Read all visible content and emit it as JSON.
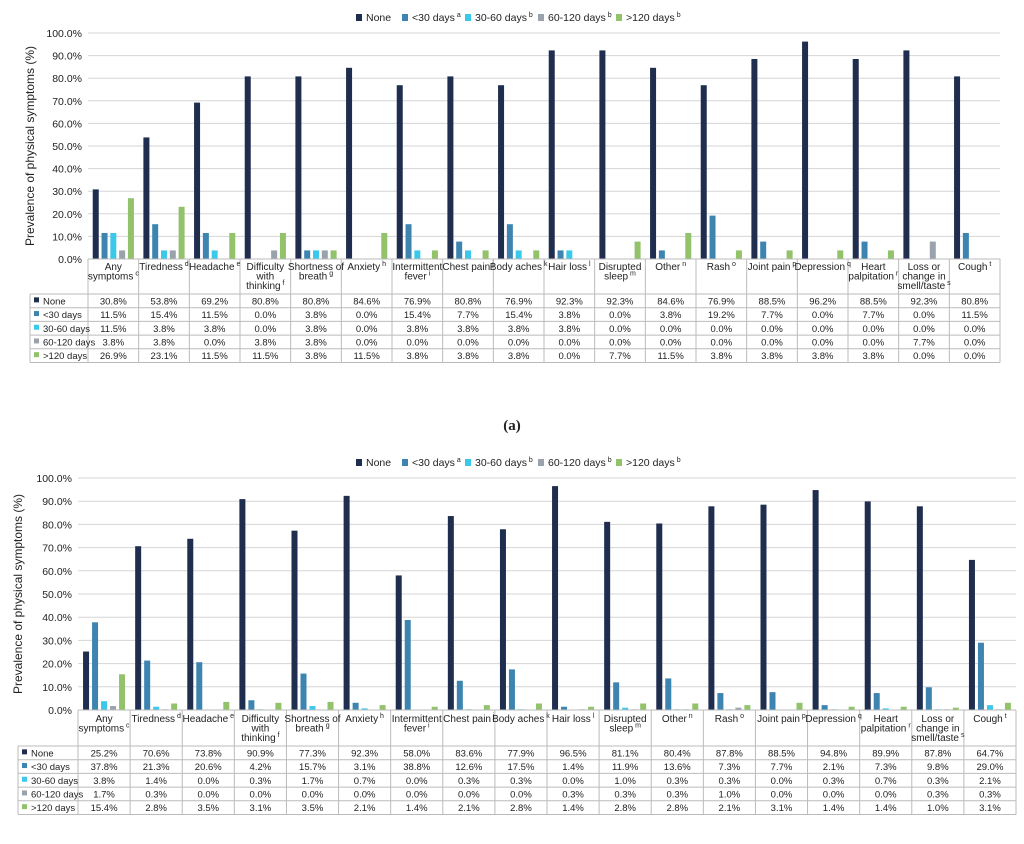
{
  "legend_labels": {
    "none": "None",
    "lt30": "<30 days",
    "d30_60": "30-60 days",
    "d60_120": "60-120 days",
    "gt120": ">120 days"
  },
  "legend_supers": {
    "lt30": "a",
    "d30_60": "b",
    "d60_120": "b",
    "gt120": "b"
  },
  "colors": {
    "none": "#1f2d4e",
    "lt30": "#3d84b0",
    "d30_60": "#3cc8ea",
    "d60_120": "#9aa3ab",
    "gt120": "#92c36a"
  },
  "caption_a": "(a)",
  "chart_data": [
    {
      "type": "bar",
      "panel": "a",
      "ylabel": "Prevalence of physical symptoms (%)",
      "ylim": [
        0,
        100
      ],
      "yticks": [
        "0.0%",
        "10.0%",
        "20.0%",
        "30.0%",
        "40.0%",
        "50.0%",
        "60.0%",
        "70.0%",
        "80.0%",
        "90.0%",
        "100.0%"
      ],
      "grid": true,
      "legend_position": "top",
      "categories": [
        {
          "lines": [
            "Any",
            "symptoms"
          ],
          "sup": "c"
        },
        {
          "lines": [
            "Tiredness"
          ],
          "sup": "d"
        },
        {
          "lines": [
            "Headache"
          ],
          "sup": "e"
        },
        {
          "lines": [
            "Difficulty",
            "with",
            "thinking"
          ],
          "sup": "f"
        },
        {
          "lines": [
            "Shortness of",
            "breath"
          ],
          "sup": "g"
        },
        {
          "lines": [
            "Anxiety"
          ],
          "sup": "h"
        },
        {
          "lines": [
            "Intermittent",
            "fever"
          ],
          "sup": "i"
        },
        {
          "lines": [
            "Chest pain"
          ],
          "sup": "j"
        },
        {
          "lines": [
            "Body aches"
          ],
          "sup": "k"
        },
        {
          "lines": [
            "Hair loss"
          ],
          "sup": "l"
        },
        {
          "lines": [
            "Disrupted",
            "sleep"
          ],
          "sup": "m"
        },
        {
          "lines": [
            "Other"
          ],
          "sup": "n"
        },
        {
          "lines": [
            "Rash"
          ],
          "sup": "o"
        },
        {
          "lines": [
            "Joint pain"
          ],
          "sup": "p"
        },
        {
          "lines": [
            "Depression"
          ],
          "sup": "q"
        },
        {
          "lines": [
            "Heart",
            "palpitation"
          ],
          "sup": "r"
        },
        {
          "lines": [
            "Loss or",
            "change in",
            "smell/taste"
          ],
          "sup": "s"
        },
        {
          "lines": [
            "Cough"
          ],
          "sup": "t"
        }
      ],
      "series": [
        {
          "key": "none",
          "name": "None",
          "values": [
            30.8,
            53.8,
            69.2,
            80.8,
            80.8,
            84.6,
            76.9,
            80.8,
            76.9,
            92.3,
            92.3,
            84.6,
            76.9,
            88.5,
            96.2,
            88.5,
            92.3,
            80.8
          ]
        },
        {
          "key": "lt30",
          "name": "<30 days",
          "values": [
            11.5,
            15.4,
            11.5,
            0.0,
            3.8,
            0.0,
            15.4,
            7.7,
            15.4,
            3.8,
            0.0,
            3.8,
            19.2,
            7.7,
            0.0,
            7.7,
            0.0,
            11.5
          ]
        },
        {
          "key": "d30_60",
          "name": "30-60 days",
          "values": [
            11.5,
            3.8,
            3.8,
            0.0,
            3.8,
            0.0,
            3.8,
            3.8,
            3.8,
            3.8,
            0.0,
            0.0,
            0.0,
            0.0,
            0.0,
            0.0,
            0.0,
            0.0
          ]
        },
        {
          "key": "d60_120",
          "name": "60-120 days",
          "values": [
            3.8,
            3.8,
            0.0,
            3.8,
            3.8,
            0.0,
            0.0,
            0.0,
            0.0,
            0.0,
            0.0,
            0.0,
            0.0,
            0.0,
            0.0,
            0.0,
            7.7,
            0.0
          ]
        },
        {
          "key": "gt120",
          "name": ">120 days",
          "values": [
            26.9,
            23.1,
            11.5,
            11.5,
            3.8,
            11.5,
            3.8,
            3.8,
            3.8,
            0.0,
            7.7,
            11.5,
            3.8,
            3.8,
            3.8,
            3.8,
            0.0,
            0.0
          ]
        }
      ],
      "table_labels": [
        "None",
        "<30 days",
        "30-60 days",
        "60-120 days",
        ">120 days"
      ],
      "table_values": [
        [
          "30.8%",
          "53.8%",
          "69.2%",
          "80.8%",
          "80.8%",
          "84.6%",
          "76.9%",
          "80.8%",
          "76.9%",
          "92.3%",
          "92.3%",
          "84.6%",
          "76.9%",
          "88.5%",
          "96.2%",
          "88.5%",
          "92.3%",
          "80.8%"
        ],
        [
          "11.5%",
          "15.4%",
          "11.5%",
          "0.0%",
          "3.8%",
          "0.0%",
          "15.4%",
          "7.7%",
          "15.4%",
          "3.8%",
          "0.0%",
          "3.8%",
          "19.2%",
          "7.7%",
          "0.0%",
          "7.7%",
          "0.0%",
          "11.5%"
        ],
        [
          "11.5%",
          "3.8%",
          "3.8%",
          "0.0%",
          "3.8%",
          "0.0%",
          "3.8%",
          "3.8%",
          "3.8%",
          "3.8%",
          "0.0%",
          "0.0%",
          "0.0%",
          "0.0%",
          "0.0%",
          "0.0%",
          "0.0%",
          "0.0%"
        ],
        [
          "3.8%",
          "3.8%",
          "0.0%",
          "3.8%",
          "3.8%",
          "0.0%",
          "0.0%",
          "0.0%",
          "0.0%",
          "0.0%",
          "0.0%",
          "0.0%",
          "0.0%",
          "0.0%",
          "0.0%",
          "0.0%",
          "7.7%",
          "0.0%"
        ],
        [
          "26.9%",
          "23.1%",
          "11.5%",
          "11.5%",
          "3.8%",
          "11.5%",
          "3.8%",
          "3.8%",
          "3.8%",
          "0.0%",
          "7.7%",
          "11.5%",
          "3.8%",
          "3.8%",
          "3.8%",
          "3.8%",
          "0.0%",
          "0.0%"
        ]
      ]
    },
    {
      "type": "bar",
      "panel": "b",
      "ylabel": "Prevalence of physical symptoms (%)",
      "ylim": [
        0,
        100
      ],
      "yticks": [
        "0.0%",
        "10.0%",
        "20.0%",
        "30.0%",
        "40.0%",
        "50.0%",
        "60.0%",
        "70.0%",
        "80.0%",
        "90.0%",
        "100.0%"
      ],
      "grid": true,
      "legend_position": "top",
      "categories": [
        {
          "lines": [
            "Any",
            "symptoms"
          ],
          "sup": "c"
        },
        {
          "lines": [
            "Tiredness"
          ],
          "sup": "d"
        },
        {
          "lines": [
            "Headache"
          ],
          "sup": "e"
        },
        {
          "lines": [
            "Difficulty",
            "with",
            "thinking"
          ],
          "sup": "f"
        },
        {
          "lines": [
            "Shortness of",
            "breath"
          ],
          "sup": "g"
        },
        {
          "lines": [
            "Anxiety"
          ],
          "sup": "h"
        },
        {
          "lines": [
            "Intermittent",
            "fever"
          ],
          "sup": "i"
        },
        {
          "lines": [
            "Chest pain"
          ],
          "sup": "j"
        },
        {
          "lines": [
            "Body aches"
          ],
          "sup": "k"
        },
        {
          "lines": [
            "Hair loss"
          ],
          "sup": "l"
        },
        {
          "lines": [
            "Disrupted",
            "sleep"
          ],
          "sup": "m"
        },
        {
          "lines": [
            "Other"
          ],
          "sup": "n"
        },
        {
          "lines": [
            "Rash"
          ],
          "sup": "o"
        },
        {
          "lines": [
            "Joint pain"
          ],
          "sup": "p"
        },
        {
          "lines": [
            "Depression"
          ],
          "sup": "q"
        },
        {
          "lines": [
            "Heart",
            "palpitation"
          ],
          "sup": "r"
        },
        {
          "lines": [
            "Loss or",
            "change in",
            "smell/taste"
          ],
          "sup": "s"
        },
        {
          "lines": [
            "Cough"
          ],
          "sup": "t"
        }
      ],
      "series": [
        {
          "key": "none",
          "name": "None",
          "values": [
            25.2,
            70.6,
            73.8,
            90.9,
            77.3,
            92.3,
            58.0,
            83.6,
            77.9,
            96.5,
            81.1,
            80.4,
            87.8,
            88.5,
            94.8,
            89.9,
            87.8,
            64.7
          ]
        },
        {
          "key": "lt30",
          "name": "<30 days",
          "values": [
            37.8,
            21.3,
            20.6,
            4.2,
            15.7,
            3.1,
            38.8,
            12.6,
            17.5,
            1.4,
            11.9,
            13.6,
            7.3,
            7.7,
            2.1,
            7.3,
            9.8,
            29.0
          ]
        },
        {
          "key": "d30_60",
          "name": "30-60 days",
          "values": [
            3.8,
            1.4,
            0.0,
            0.3,
            1.7,
            0.7,
            0.0,
            0.3,
            0.3,
            0.0,
            1.0,
            0.3,
            0.3,
            0.0,
            0.3,
            0.7,
            0.3,
            2.1
          ]
        },
        {
          "key": "d60_120",
          "name": "60-120 days",
          "values": [
            1.7,
            0.3,
            0.0,
            0.0,
            0.0,
            0.0,
            0.0,
            0.0,
            0.0,
            0.3,
            0.3,
            0.3,
            1.0,
            0.0,
            0.0,
            0.0,
            0.3,
            0.3
          ]
        },
        {
          "key": "gt120",
          "name": ">120 days",
          "values": [
            15.4,
            2.8,
            3.5,
            3.1,
            3.5,
            2.1,
            1.4,
            2.1,
            2.8,
            1.4,
            2.8,
            2.8,
            2.1,
            3.1,
            1.4,
            1.4,
            1.0,
            3.1
          ]
        }
      ],
      "table_labels": [
        "None",
        "<30 days",
        "30-60 days",
        "60-120 days",
        ">120 days"
      ],
      "table_values": [
        [
          "25.2%",
          "70.6%",
          "73.8%",
          "90.9%",
          "77.3%",
          "92.3%",
          "58.0%",
          "83.6%",
          "77.9%",
          "96.5%",
          "81.1%",
          "80.4%",
          "87.8%",
          "88.5%",
          "94.8%",
          "89.9%",
          "87.8%",
          "64.7%"
        ],
        [
          "37.8%",
          "21.3%",
          "20.6%",
          "4.2%",
          "15.7%",
          "3.1%",
          "38.8%",
          "12.6%",
          "17.5%",
          "1.4%",
          "11.9%",
          "13.6%",
          "7.3%",
          "7.7%",
          "2.1%",
          "7.3%",
          "9.8%",
          "29.0%"
        ],
        [
          "3.8%",
          "1.4%",
          "0.0%",
          "0.3%",
          "1.7%",
          "0.7%",
          "0.0%",
          "0.3%",
          "0.3%",
          "0.0%",
          "1.0%",
          "0.3%",
          "0.3%",
          "0.0%",
          "0.3%",
          "0.7%",
          "0.3%",
          "2.1%"
        ],
        [
          "1.7%",
          "0.3%",
          "0.0%",
          "0.0%",
          "0.0%",
          "0.0%",
          "0.0%",
          "0.0%",
          "0.0%",
          "0.3%",
          "0.3%",
          "0.3%",
          "1.0%",
          "0.0%",
          "0.0%",
          "0.0%",
          "0.3%",
          "0.3%"
        ],
        [
          "15.4%",
          "2.8%",
          "3.5%",
          "3.1%",
          "3.5%",
          "2.1%",
          "1.4%",
          "2.1%",
          "2.8%",
          "1.4%",
          "2.8%",
          "2.8%",
          "2.1%",
          "3.1%",
          "1.4%",
          "1.4%",
          "1.0%",
          "3.1%"
        ]
      ]
    }
  ]
}
